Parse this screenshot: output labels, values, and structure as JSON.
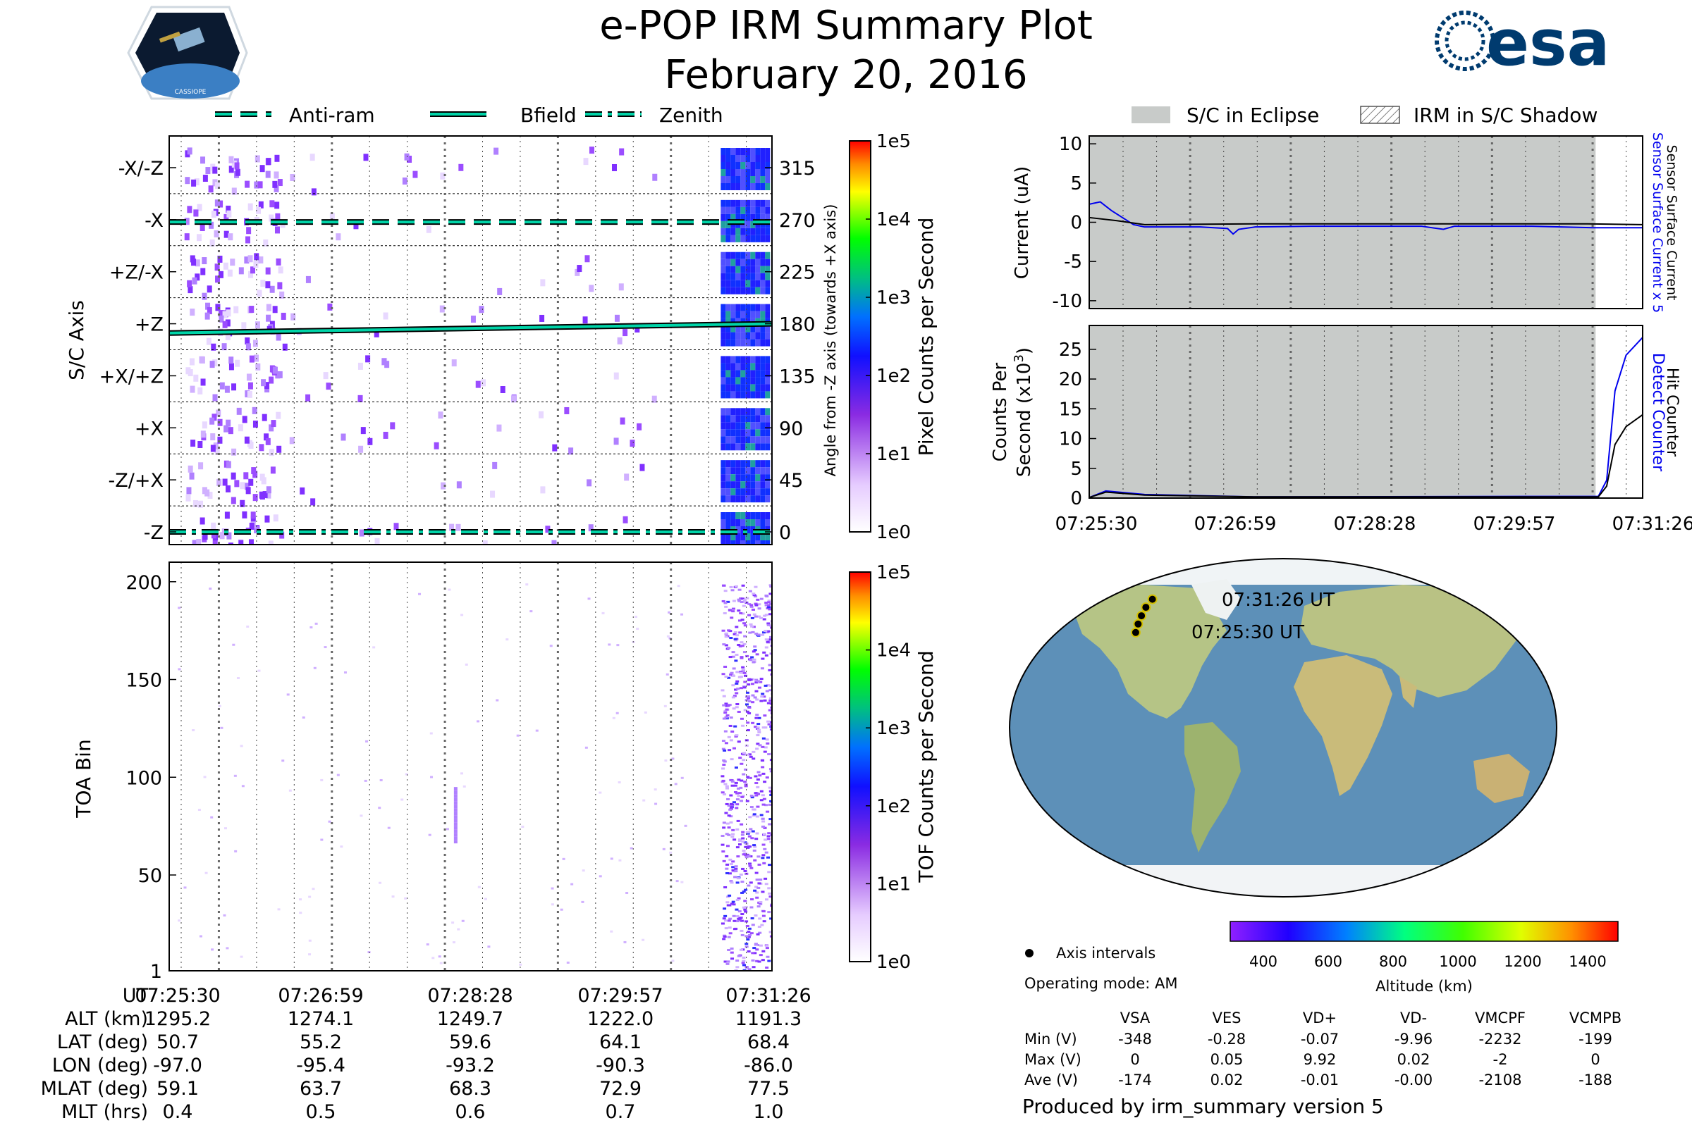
{
  "header": {
    "title": "e-POP IRM Summary Plot",
    "date": "February 20, 2016",
    "mission_logo_text": "CASSIOPE",
    "agency_logo_text": "esa"
  },
  "legends": {
    "left": [
      {
        "label": "Anti-ram",
        "style": "dashed",
        "color": "#00d4a8"
      },
      {
        "label": "Bfield",
        "style": "solid",
        "color": "#00d4a8"
      },
      {
        "label": "Zenith",
        "style": "dashdot",
        "color": "#00d4a8"
      }
    ],
    "right": [
      {
        "label": "S/C in Eclipse",
        "style": "gray-fill"
      },
      {
        "label": "IRM in S/C Shadow",
        "style": "hatched"
      }
    ]
  },
  "colors": {
    "eclipse_gray": "#c8cbc9",
    "line_teal": "#00d4a8",
    "blue": "#0000ee",
    "purple": "#9b4dff"
  },
  "colorbar": {
    "ticks": [
      "1e0",
      "1e1",
      "1e2",
      "1e3",
      "1e4",
      "1e5"
    ],
    "pixel_label": "Pixel Counts per Second",
    "tof_label": "TOF Counts per Second"
  },
  "time_ticks": [
    "07:25:30",
    "07:26:59",
    "07:28:28",
    "07:29:57",
    "07:31:26"
  ],
  "info_table": {
    "rows": [
      {
        "label": "UT",
        "values": [
          "07:25:30",
          "07:26:59",
          "07:28:28",
          "07:29:57",
          "07:31:26"
        ]
      },
      {
        "label": "ALT (km)",
        "values": [
          "1295.2",
          "1274.1",
          "1249.7",
          "1222.0",
          "1191.3"
        ]
      },
      {
        "label": "LAT (deg)",
        "values": [
          "50.7",
          "55.2",
          "59.6",
          "64.1",
          "68.4"
        ]
      },
      {
        "label": "LON (deg)",
        "values": [
          "-97.0",
          "-95.4",
          "-93.2",
          "-90.3",
          "-86.0"
        ]
      },
      {
        "label": "MLAT (deg)",
        "values": [
          "59.1",
          "63.7",
          "68.3",
          "72.9",
          "77.5"
        ]
      },
      {
        "label": "MLT (hrs)",
        "values": [
          "0.4",
          "0.5",
          "0.6",
          "0.7",
          "1.0"
        ]
      }
    ]
  },
  "map": {
    "start_label": "07:25:30 UT",
    "end_label": "07:31:26 UT",
    "track_points": [
      [
        -97.0,
        50.7
      ],
      [
        -95.4,
        55.2
      ],
      [
        -93.2,
        59.6
      ],
      [
        -90.3,
        64.1
      ],
      [
        -86.0,
        68.4
      ]
    ],
    "altitude_ticks": [
      "400",
      "600",
      "800",
      "1000",
      "1200",
      "1400"
    ],
    "altitude_label": "Altitude (km)",
    "axis_intervals_label": "Axis intervals",
    "operating_mode": "Operating mode: AM"
  },
  "voltage_table": {
    "headers": [
      "VSA",
      "VES",
      "VD+",
      "VD-",
      "VMCPF",
      "VCMPB"
    ],
    "rows": [
      {
        "label": "Min (V)",
        "values": [
          "-348",
          "-0.28",
          "-0.07",
          "-9.96",
          "-2232",
          "-199"
        ]
      },
      {
        "label": "Max (V)",
        "values": [
          "0",
          "0.05",
          "9.92",
          "0.02",
          "-2",
          "0"
        ]
      },
      {
        "label": "Ave (V)",
        "values": [
          "-174",
          "0.02",
          "-0.01",
          "-0.00",
          "-2108",
          "-188"
        ]
      }
    ]
  },
  "footer": "Produced by irm_summary version 5",
  "chart_data": [
    {
      "type": "heatmap",
      "name": "Pixel counts by S/C axis",
      "ylabel": "S/C Axis",
      "y2label": "Angle from -Z axis (towards +X axis)",
      "y_categories": [
        "-Z",
        "-Z/+X",
        "+X",
        "+X/+Z",
        "+Z",
        "+Z/-X",
        "-X",
        "-X/-Z"
      ],
      "y_angles": [
        0,
        45,
        90,
        135,
        180,
        225,
        270,
        315
      ],
      "x_ticks": [
        "07:25:30",
        "07:26:59",
        "07:28:28",
        "07:29:57",
        "07:31:26"
      ],
      "colorbar": "Pixel Counts per Second",
      "color_scale": "log",
      "color_range": [
        1,
        100000
      ],
      "lines": [
        {
          "name": "Anti-ram",
          "angle_values": [
            268,
            268,
            268,
            268,
            268
          ]
        },
        {
          "name": "Bfield",
          "angle_values": [
            172,
            174,
            176,
            178,
            180
          ]
        },
        {
          "name": "Zenith",
          "angle_values": [
            0,
            0,
            0,
            0,
            0
          ]
        }
      ]
    },
    {
      "type": "heatmap",
      "name": "TOF counts by TOA bin",
      "ylabel": "TOA Bin",
      "y_ticks": [
        1,
        50,
        100,
        150,
        200
      ],
      "ylim": [
        1,
        210
      ],
      "x_ticks": [
        "07:25:30",
        "07:26:59",
        "07:28:28",
        "07:29:57",
        "07:31:26"
      ],
      "colorbar": "TOF Counts per Second",
      "color_scale": "log",
      "color_range": [
        1,
        100000
      ]
    },
    {
      "type": "line",
      "ylabel": "Current (uA)",
      "ylim": [
        -11,
        11
      ],
      "y_ticks": [
        10,
        5,
        0,
        -5,
        -10
      ],
      "right_labels": [
        "Sensor Surface Current x 5",
        "Sensor Surface Current"
      ],
      "x_ticks": [
        "07:25:30",
        "07:26:59",
        "07:28:28",
        "07:29:57",
        "07:31:26"
      ],
      "series": [
        {
          "name": "Sensor Surface Current x 5",
          "color": "#0000ee",
          "x_frac": [
            0,
            0.02,
            0.04,
            0.08,
            0.1,
            0.2,
            0.25,
            0.26,
            0.27,
            0.3,
            0.4,
            0.6,
            0.64,
            0.66,
            0.8,
            0.91,
            1.0
          ],
          "values": [
            2.3,
            2.6,
            1.5,
            -0.3,
            -0.6,
            -0.6,
            -0.8,
            -1.5,
            -0.9,
            -0.6,
            -0.5,
            -0.5,
            -0.9,
            -0.5,
            -0.5,
            -0.7,
            -0.7
          ]
        },
        {
          "name": "Sensor Surface Current",
          "color": "#000000",
          "x_frac": [
            0,
            0.05,
            0.1,
            0.3,
            0.6,
            0.9,
            1.0
          ],
          "values": [
            0.6,
            0.2,
            -0.3,
            -0.2,
            -0.2,
            -0.2,
            -0.3
          ]
        }
      ],
      "eclipse_until_frac": 0.915
    },
    {
      "type": "line",
      "ylabel": "Counts Per Second (x10^3)",
      "ylim": [
        0,
        29
      ],
      "y_ticks": [
        0,
        5,
        10,
        15,
        20,
        25
      ],
      "right_labels": [
        "Detect Counter",
        "Hit Counter"
      ],
      "x_ticks": [
        "07:25:30",
        "07:26:59",
        "07:28:28",
        "07:29:57",
        "07:31:26"
      ],
      "series": [
        {
          "name": "Detect Counter",
          "color": "#0000ee",
          "x_frac": [
            0,
            0.03,
            0.1,
            0.3,
            0.92,
            0.935,
            0.95,
            0.97,
            1.0
          ],
          "values": [
            0.1,
            1.2,
            0.6,
            0.2,
            0.3,
            3,
            18,
            24,
            27
          ]
        },
        {
          "name": "Hit Counter",
          "color": "#000000",
          "x_frac": [
            0,
            0.03,
            0.1,
            0.3,
            0.92,
            0.935,
            0.95,
            0.97,
            1.0
          ],
          "values": [
            0.1,
            1.0,
            0.5,
            0.2,
            0.2,
            2,
            9,
            12,
            14
          ]
        }
      ],
      "eclipse_until_frac": 0.915
    }
  ]
}
